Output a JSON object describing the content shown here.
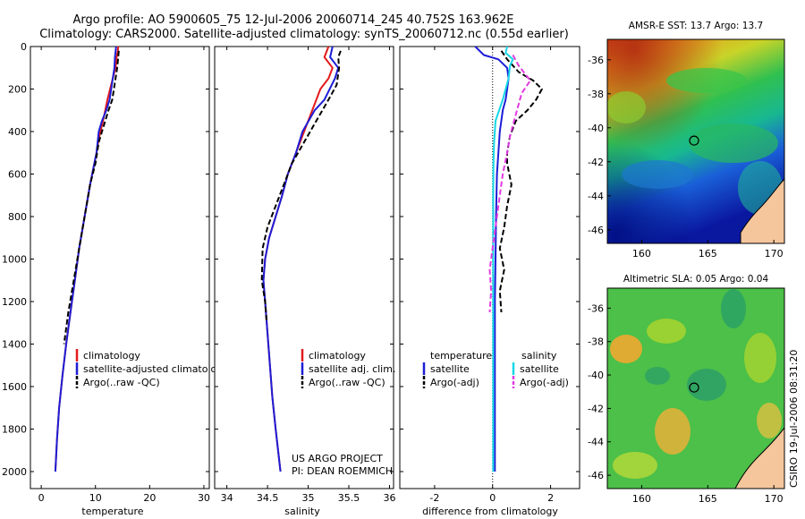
{
  "header": {
    "line1": "Argo profile: AO 5900605_75 12-Jul-2006 20060714_245 40.752S 163.962E",
    "line2": "Climatology: CARS2000. Satellite-adjusted climatology: synTS_20060712.nc (0.55d earlier)"
  },
  "colors": {
    "red": "#e31a1c",
    "blue": "#1d1dd6",
    "black": "#000000",
    "cyan": "#16d7e6",
    "magenta": "#e13be1"
  },
  "chart_data": [
    {
      "type": "line",
      "id": "temperature",
      "xlabel": "temperature",
      "ylabel": "",
      "xlim": [
        -2,
        31
      ],
      "ylim": [
        2080,
        0
      ],
      "xticks": [
        0,
        10,
        20,
        30
      ],
      "yticks": [
        0,
        200,
        400,
        600,
        800,
        1000,
        1200,
        1400,
        1600,
        1800,
        2000
      ],
      "legend": [
        "climatology",
        "satellite-adjusted climatology",
        "Argo(..raw -QC)"
      ],
      "series": [
        {
          "name": "climatology",
          "color": "red",
          "dash": false,
          "x": [
            14.2,
            14.1,
            13.9,
            13.7,
            13.2,
            12.2,
            11.4,
            10.9,
            10.5,
            10.2,
            9.8,
            9.0,
            8.0,
            7.0,
            6.2,
            5.4,
            4.6,
            3.9,
            3.3,
            2.9,
            2.6
          ],
          "y": [
            0,
            25,
            50,
            100,
            150,
            250,
            350,
            400,
            450,
            500,
            550,
            650,
            800,
            950,
            1100,
            1250,
            1400,
            1550,
            1700,
            1850,
            2000
          ]
        },
        {
          "name": "satellite-adjusted climatology",
          "color": "blue",
          "dash": false,
          "x": [
            13.8,
            13.7,
            13.6,
            13.5,
            13.2,
            12.6,
            12.0,
            11.2,
            10.6,
            10.2,
            9.8,
            9.0,
            8.0,
            7.0,
            6.2,
            5.4,
            4.6,
            3.9,
            3.3,
            2.9,
            2.6
          ],
          "y": [
            0,
            25,
            50,
            100,
            150,
            250,
            300,
            350,
            400,
            500,
            550,
            650,
            800,
            950,
            1100,
            1250,
            1400,
            1550,
            1700,
            1850,
            2000
          ]
        },
        {
          "name": "Argo(..raw -QC)",
          "color": "black",
          "dash": true,
          "x": [
            14.3,
            14.2,
            14.0,
            13.7,
            13.1,
            12.4,
            11.2,
            10.6,
            10.0,
            9.0,
            8.0,
            7.0,
            6.0,
            5.0,
            4.2
          ],
          "y": [
            20,
            50,
            100,
            150,
            250,
            300,
            400,
            450,
            550,
            650,
            800,
            950,
            1100,
            1250,
            1400
          ]
        }
      ]
    },
    {
      "type": "line",
      "id": "salinity",
      "xlabel": "salinity",
      "ylabel": "",
      "xlim": [
        33.85,
        36.05
      ],
      "ylim": [
        2080,
        0
      ],
      "xticks": [
        34,
        34.5,
        35,
        35.5,
        36
      ],
      "yticks": [
        0,
        200,
        400,
        600,
        800,
        1000,
        1200,
        1400,
        1600,
        1800,
        2000
      ],
      "legend": [
        "climatology",
        "satellite adj. clim.",
        "Argo(..raw -QC)"
      ],
      "annotation": [
        "US ARGO PROJECT",
        "PI: DEAN ROEMMICH"
      ],
      "series": [
        {
          "name": "climatology",
          "color": "red",
          "dash": false,
          "x": [
            35.25,
            35.2,
            35.3,
            35.25,
            35.15,
            35.05,
            34.95,
            34.85,
            34.75,
            34.68,
            34.6,
            34.52,
            34.47,
            34.45,
            34.47,
            34.5,
            34.53,
            34.56,
            34.6,
            34.63,
            34.66
          ],
          "y": [
            0,
            50,
            100,
            150,
            200,
            300,
            400,
            500,
            600,
            700,
            800,
            900,
            1000,
            1100,
            1200,
            1350,
            1500,
            1650,
            1800,
            1900,
            2000
          ]
        },
        {
          "name": "satellite adj. clim.",
          "color": "blue",
          "dash": false,
          "x": [
            35.3,
            35.27,
            35.37,
            35.33,
            35.2,
            35.08,
            34.93,
            34.85,
            34.75,
            34.68,
            34.6,
            34.52,
            34.47,
            34.45,
            34.47,
            34.5,
            34.53,
            34.56,
            34.6,
            34.63,
            34.66
          ],
          "y": [
            0,
            50,
            100,
            150,
            250,
            300,
            400,
            500,
            600,
            700,
            800,
            900,
            1000,
            1100,
            1200,
            1350,
            1500,
            1650,
            1800,
            1900,
            2000
          ]
        },
        {
          "name": "Argo(..raw -QC)",
          "color": "black",
          "dash": true,
          "x": [
            35.4,
            35.37,
            35.38,
            35.35,
            35.25,
            35.1,
            34.95,
            34.8,
            34.7,
            34.6,
            34.5,
            34.44,
            34.43,
            34.47,
            34.49
          ],
          "y": [
            20,
            50,
            100,
            180,
            250,
            350,
            450,
            550,
            650,
            750,
            850,
            950,
            1100,
            1200,
            1300
          ]
        }
      ]
    },
    {
      "type": "line",
      "id": "difference",
      "xlabel": "difference from climatology",
      "ylabel": "",
      "xlim": [
        -3.2,
        3.0
      ],
      "ylim": [
        2080,
        0
      ],
      "xticks": [
        -2,
        0,
        2
      ],
      "yticks": [
        0,
        200,
        400,
        600,
        800,
        1000,
        1200,
        1400,
        1600,
        1800,
        2000
      ],
      "zero_line": 0,
      "legend_left_title": "temperature",
      "legend_right_title": "salinity",
      "legend": [
        "satellite",
        "Argo(-adj)",
        "satellite",
        "Argo(-adj)"
      ],
      "series": [
        {
          "name": "temperature satellite",
          "color": "blue",
          "dash": false,
          "x": [
            -0.6,
            -0.3,
            0.2,
            0.5,
            0.55,
            0.5,
            0.45,
            0.35,
            0.25,
            0.2,
            0.15,
            0.12,
            0.1,
            0.08,
            0.08,
            0.08,
            0.08
          ],
          "y": [
            0,
            40,
            60,
            100,
            150,
            200,
            250,
            300,
            400,
            500,
            600,
            800,
            1000,
            1200,
            1500,
            1800,
            2000
          ]
        },
        {
          "name": "temperature Argo(-adj)",
          "color": "black",
          "dash": true,
          "x": [
            0.3,
            0.5,
            0.9,
            1.4,
            1.7,
            1.5,
            1.2,
            0.8,
            0.6,
            0.5,
            0.5,
            0.65,
            0.5,
            0.4,
            0.25,
            0.4,
            0.25,
            0.3
          ],
          "y": [
            20,
            60,
            120,
            160,
            200,
            250,
            300,
            350,
            420,
            500,
            550,
            650,
            750,
            850,
            950,
            1050,
            1150,
            1250
          ]
        },
        {
          "name": "salinity satellite",
          "color": "cyan",
          "dash": false,
          "x": [
            0.5,
            0.45,
            0.7,
            0.6,
            0.55,
            0.35,
            0.1,
            0.05,
            0.03,
            0.02,
            0.02,
            0.02,
            0.02,
            0.02,
            0.02,
            0.02,
            0.02
          ],
          "y": [
            0,
            30,
            60,
            90,
            150,
            250,
            350,
            450,
            550,
            700,
            900,
            1100,
            1300,
            1500,
            1700,
            1900,
            2000
          ]
        },
        {
          "name": "salinity Argo(-adj)",
          "color": "magenta",
          "dash": true,
          "x": [
            0.7,
            0.9,
            1.3,
            1.0,
            0.8,
            0.6,
            0.5,
            0.35,
            0.25,
            0.1,
            0.0,
            -0.1,
            -0.05,
            -0.1
          ],
          "y": [
            40,
            90,
            160,
            220,
            320,
            420,
            500,
            600,
            700,
            850,
            950,
            1050,
            1150,
            1250
          ]
        }
      ]
    },
    {
      "type": "heatmap",
      "id": "sst_map",
      "title": "AMSR-E SST: 13.7 Argo: 13.7",
      "xticks": [
        160,
        165,
        170
      ],
      "yticks": [
        -36,
        -38,
        -40,
        -42,
        -44,
        -46
      ],
      "xlim": [
        157.4,
        170.8
      ],
      "ylim": [
        -46.8,
        -34.8
      ],
      "marker": {
        "lon": 163.962,
        "lat": -40.752
      }
    },
    {
      "type": "heatmap",
      "id": "sla_map",
      "title": "Altimetric SLA: 0.05 Argo: 0.04",
      "xticks": [
        160,
        165,
        170
      ],
      "yticks": [
        -36,
        -38,
        -40,
        -42,
        -44,
        -46
      ],
      "xlim": [
        157.4,
        170.8
      ],
      "ylim": [
        -46.8,
        -34.8
      ],
      "marker": {
        "lon": 163.962,
        "lat": -40.752
      }
    }
  ],
  "footer": {
    "stamp": "CSIRO 19-Jul-2006 08:31:20"
  }
}
